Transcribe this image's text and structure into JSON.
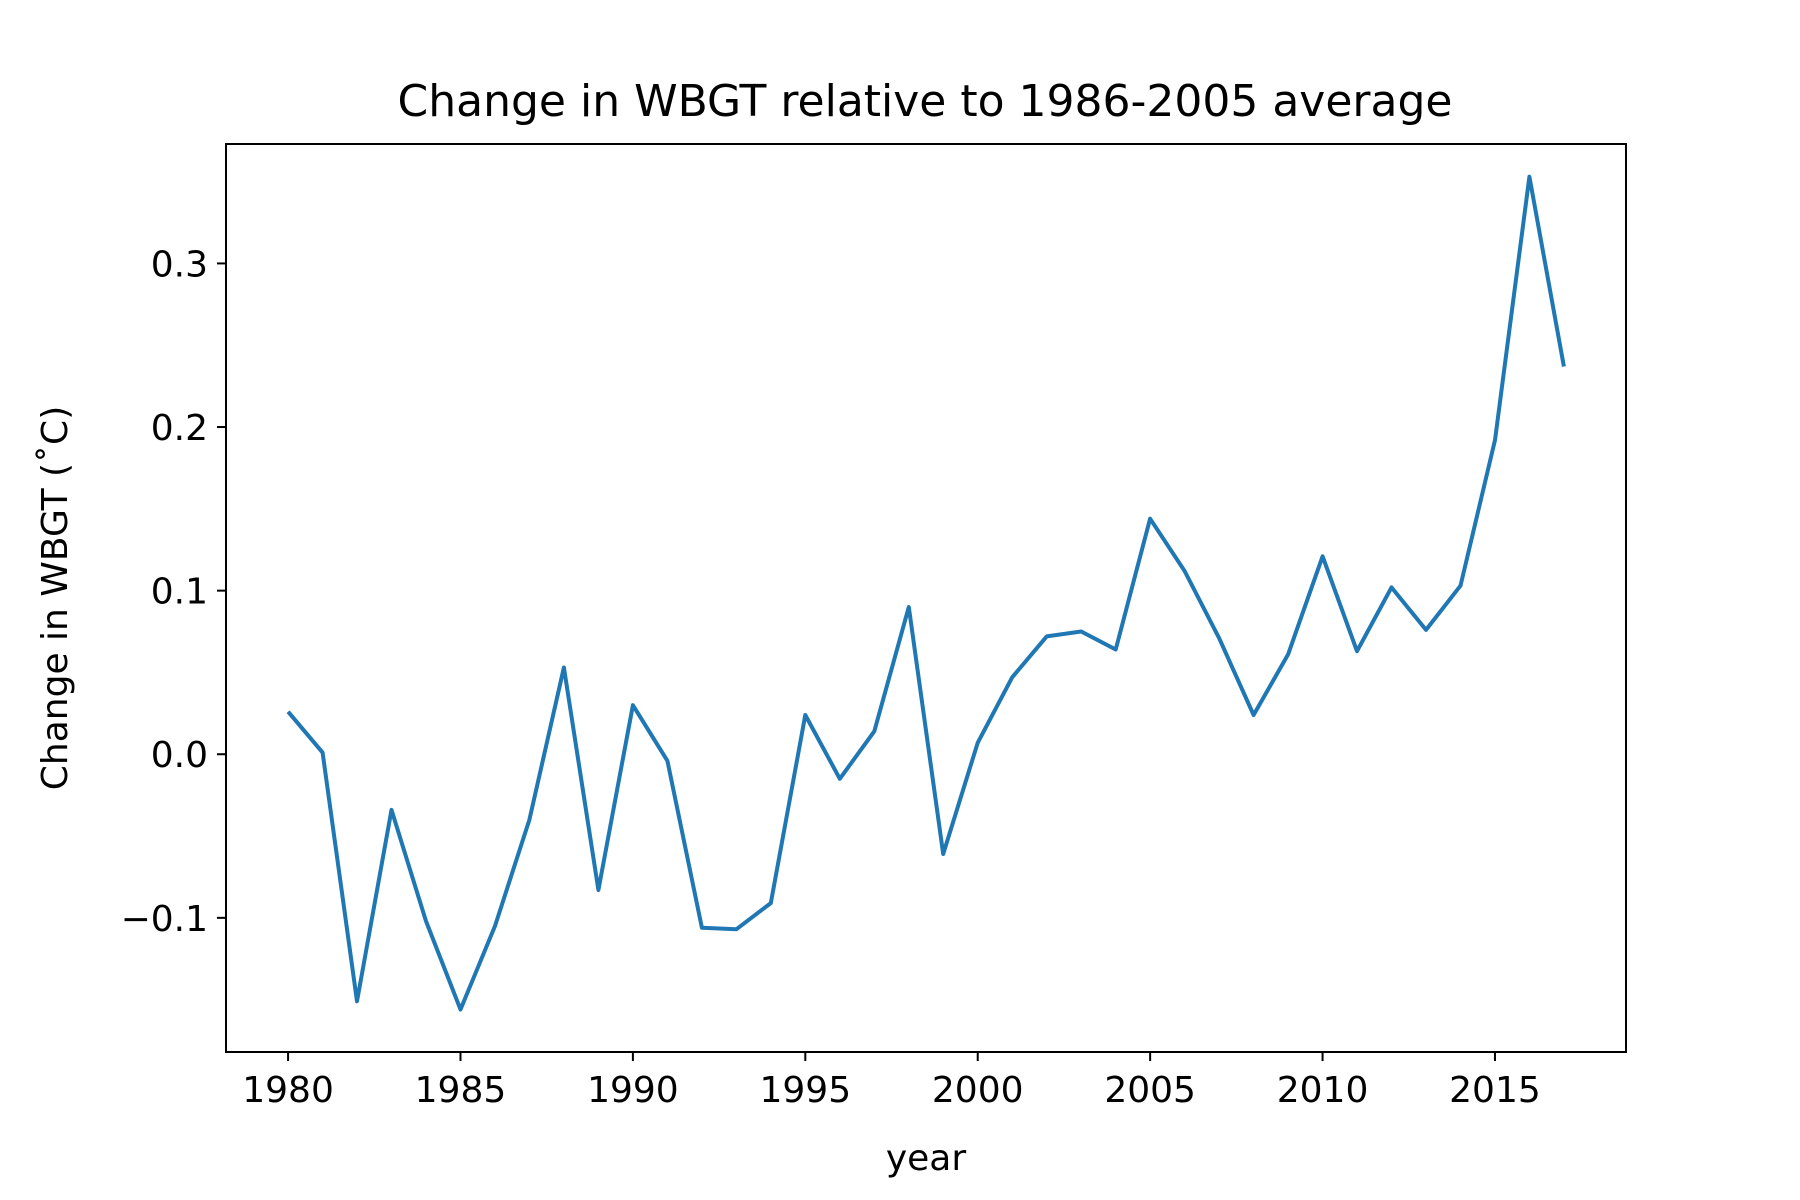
{
  "chart_data": {
    "type": "line",
    "title": "Change in WBGT relative to 1986-2005 average",
    "xlabel": "year",
    "ylabel": "Change in WBGT (˚C)",
    "xlim": [
      1978.2,
      2018.8
    ],
    "ylim": [
      -0.182,
      0.373
    ],
    "xticks": [
      1980,
      1985,
      1990,
      1995,
      2000,
      2005,
      2010,
      2015
    ],
    "xtick_labels": [
      "1980",
      "1985",
      "1990",
      "1995",
      "2000",
      "2005",
      "2010",
      "2015"
    ],
    "yticks": [
      -0.1,
      0.0,
      0.1,
      0.2,
      0.3
    ],
    "ytick_labels": [
      "−0.1",
      "0.0",
      "0.1",
      "0.2",
      "0.3"
    ],
    "grid": false,
    "line_color": "#1f77b4",
    "x": [
      1980,
      1981,
      1982,
      1983,
      1984,
      1985,
      1986,
      1987,
      1988,
      1989,
      1990,
      1991,
      1992,
      1993,
      1994,
      1995,
      1996,
      1997,
      1998,
      1999,
      2000,
      2001,
      2002,
      2003,
      2004,
      2005,
      2006,
      2007,
      2008,
      2009,
      2010,
      2011,
      2012,
      2013,
      2014,
      2015,
      2016,
      2017
    ],
    "values": [
      0.026,
      0.001,
      -0.151,
      -0.034,
      -0.102,
      -0.156,
      -0.105,
      -0.04,
      0.053,
      -0.083,
      0.03,
      -0.004,
      -0.106,
      -0.107,
      -0.091,
      0.024,
      -0.015,
      0.014,
      0.09,
      -0.061,
      0.007,
      0.047,
      0.072,
      0.075,
      0.064,
      0.144,
      0.112,
      0.071,
      0.024,
      0.061,
      0.121,
      0.063,
      0.102,
      0.076,
      0.103,
      0.192,
      0.353,
      0.237
    ]
  }
}
